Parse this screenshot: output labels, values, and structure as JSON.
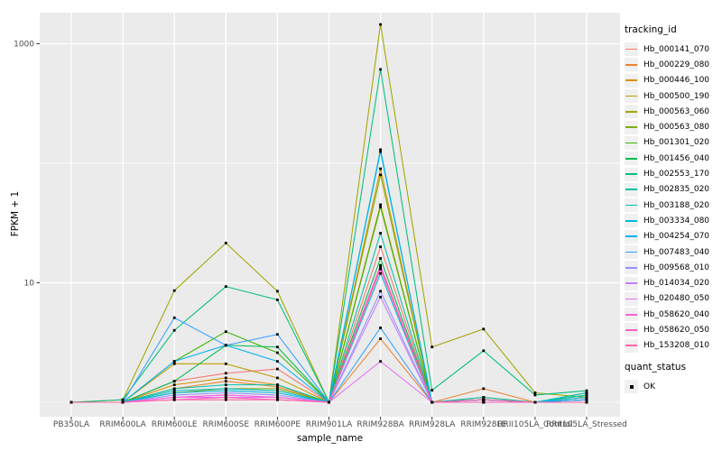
{
  "figure": {
    "background": "#FFFFFF",
    "panel_background": "#EBEBEB",
    "grid_color": "#FFFFFF",
    "tick_label_color": "#4D4D4D",
    "point_color": "#000000"
  },
  "y_axis": {
    "title": "FPKM + 1",
    "scale": "log10",
    "tick_labels": [
      "1000",
      "10"
    ],
    "tick_values": [
      1000,
      10
    ],
    "minor_grid_values": [
      100,
      1
    ]
  },
  "x_axis": {
    "title": "sample_name"
  },
  "legend": {
    "tracking_title": "tracking_id",
    "quant_title": "quant_status",
    "quant_items": [
      {
        "label": "OK",
        "marker": "black-square"
      }
    ]
  },
  "chart_data": {
    "type": "line",
    "title": "",
    "x_label": "sample_name",
    "y_label": "FPKM + 1",
    "y_scale": "log10",
    "y_ticks": [
      10,
      1000
    ],
    "ylim": [
      0.9,
      1800
    ],
    "grid": true,
    "legend_position": "right",
    "point_marker": "black-square",
    "x_categories": [
      "PB350LA",
      "RRIM600LA",
      "RRIM600LE",
      "RRIM600SE",
      "RRIM600PE",
      "RRIM901LA",
      "RRIM928BA",
      "RRIM928LA",
      "RRIM928LE",
      "RRII105LA_Control",
      "RRII105LA_Stressed"
    ],
    "values_are": "FPKM + 1 (estimated from plot)",
    "series": [
      {
        "name": "Hb_000141_070",
        "color": "#F8766D",
        "values": [
          1,
          1,
          1.5,
          1.75,
          1.9,
          1,
          20,
          1,
          1.05,
          1,
          1
        ]
      },
      {
        "name": "Hb_000229_080",
        "color": "#EA8331",
        "values": [
          1,
          1,
          1.3,
          1.5,
          1.35,
          1,
          3.4,
          1,
          1.3,
          1,
          1.05
        ]
      },
      {
        "name": "Hb_000446_100",
        "color": "#D89000",
        "values": [
          1,
          1,
          1.4,
          1.6,
          1.4,
          1,
          90,
          1,
          1.1,
          1,
          1
        ]
      },
      {
        "name": "Hb_000500_190",
        "color": "#C09B00",
        "values": [
          1,
          1,
          2.1,
          2.1,
          1.6,
          1,
          45,
          1,
          1.05,
          1,
          1.05
        ]
      },
      {
        "name": "Hb_000563_060",
        "color": "#A3A500",
        "values": [
          1,
          1.05,
          8.6,
          21.5,
          8.5,
          1,
          1450,
          2.9,
          4.1,
          1.2,
          1.1
        ]
      },
      {
        "name": "Hb_000563_080",
        "color": "#7CAE00",
        "values": [
          1,
          1,
          1.2,
          1.3,
          1.3,
          1,
          80,
          1,
          1,
          1,
          1.1
        ]
      },
      {
        "name": "Hb_001301_020",
        "color": "#39B600",
        "values": [
          1,
          1,
          2.2,
          3.9,
          2.6,
          1,
          43,
          1,
          1.05,
          1,
          1.15
        ]
      },
      {
        "name": "Hb_001456_040",
        "color": "#00BB4E",
        "values": [
          1,
          1,
          1.5,
          3.0,
          2.9,
          1,
          16,
          1,
          1.05,
          1,
          1.2
        ]
      },
      {
        "name": "Hb_002553_170",
        "color": "#00BF7D",
        "values": [
          1,
          1.05,
          4.0,
          9.3,
          7.2,
          1,
          610,
          1.26,
          2.7,
          1.15,
          1.25
        ]
      },
      {
        "name": "Hb_002835_020",
        "color": "#00C1A3",
        "values": [
          1,
          1,
          1.3,
          1.4,
          1.4,
          1,
          26,
          1,
          1.1,
          1,
          1.2
        ]
      },
      {
        "name": "Hb_003188_020",
        "color": "#00BFC4",
        "values": [
          1,
          1,
          1.25,
          1.3,
          1.25,
          1,
          130,
          1,
          1.05,
          1,
          1.15
        ]
      },
      {
        "name": "Hb_003334_080",
        "color": "#00BAE0",
        "values": [
          1,
          1,
          1.2,
          1.25,
          1.2,
          1,
          12,
          1,
          1,
          1,
          1.1
        ]
      },
      {
        "name": "Hb_004254_070",
        "color": "#00B0F6",
        "values": [
          1,
          1,
          2.2,
          3.0,
          2.2,
          1,
          125,
          1,
          1.05,
          1,
          1.05
        ]
      },
      {
        "name": "Hb_007483_040",
        "color": "#35A2FF",
        "values": [
          1,
          1,
          5.1,
          3.0,
          3.7,
          1,
          4.2,
          1,
          1.05,
          1,
          1.05
        ]
      },
      {
        "name": "Hb_009568_010",
        "color": "#9590FF",
        "values": [
          1,
          1,
          1.15,
          1.2,
          1.15,
          1,
          8.5,
          1,
          1,
          1,
          1
        ]
      },
      {
        "name": "Hb_014034_020",
        "color": "#C77CFF",
        "values": [
          1,
          1,
          1.1,
          1.15,
          1.1,
          1,
          7.6,
          1,
          1,
          1,
          1
        ]
      },
      {
        "name": "Hb_020480_050",
        "color": "#E76BF3",
        "values": [
          1,
          1,
          1.1,
          1.1,
          1.1,
          1,
          2.2,
          1,
          1,
          1,
          1
        ]
      },
      {
        "name": "Hb_058620_040",
        "color": "#FA62DB",
        "values": [
          1,
          1,
          1.1,
          1.15,
          1.1,
          1,
          14,
          1,
          1,
          1,
          1
        ]
      },
      {
        "name": "Hb_058620_050",
        "color": "#FF61C3",
        "values": [
          1,
          1,
          1.05,
          1.1,
          1.05,
          1,
          13.5,
          1,
          1,
          1,
          1
        ]
      },
      {
        "name": "Hb_153208_010",
        "color": "#FF67A4",
        "values": [
          1,
          1,
          1.05,
          1.05,
          1.05,
          1,
          13,
          1,
          1.05,
          1,
          1
        ]
      }
    ]
  }
}
